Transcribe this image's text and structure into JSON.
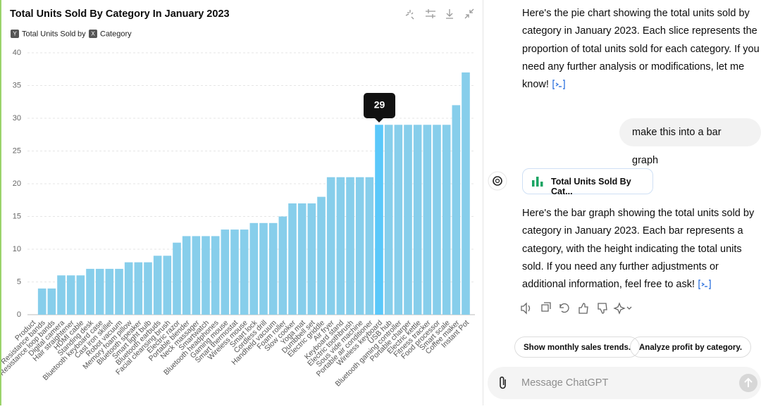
{
  "chart_data": {
    "type": "bar",
    "title": "Total Units Sold By Category In January 2023",
    "y_badge": "Y",
    "y_field": "Total Units Sold",
    "by": "by",
    "x_badge": "X",
    "x_field": "Category",
    "categories": [
      "Product",
      "Resistance bands",
      "Resistance loop bands",
      "Digital camera",
      "Hair straightener",
      "HDMI cable",
      "Standing desk",
      "Bluetooth keyboard case",
      "Cast iron skillet",
      "Robot vacuum",
      "Memory foam pillow",
      "Bluetooth speaker",
      "Smart light bulb",
      "Bluetooth earbuds",
      "Facial cleansing brush",
      "Electric razor",
      "Portable blender",
      "Neck massager",
      "Smartwatch",
      "Bluetooth headphones",
      "Gaming mouse",
      "Smart thermostat",
      "Wireless mouse",
      "Smart lock",
      "Cordless drill",
      "Handheld vacuum",
      "Foam roller",
      "Slow cooker",
      "Yoga mat",
      "Dumbbell set",
      "Electric griddle",
      "Air fryer",
      "Keyboard stand",
      "Electric toothbrush",
      "Sous vide machine",
      "Portable air conditioner",
      "Wireless keyboard",
      "USB hub",
      "Bluetooth gaming controller",
      "Portable charger",
      "Electric kettle",
      "Fitness tracker",
      "Food processor",
      "Smart scale",
      "Coffee maker",
      "Instant Pot"
    ],
    "values": [
      null,
      4,
      4,
      6,
      6,
      6,
      7,
      7,
      7,
      7,
      8,
      8,
      8,
      9,
      9,
      11,
      12,
      12,
      12,
      12,
      13,
      13,
      13,
      14,
      14,
      14,
      15,
      17,
      17,
      17,
      18,
      21,
      21,
      21,
      21,
      21,
      29,
      29,
      29,
      29,
      29,
      29,
      29,
      29,
      32,
      37
    ],
    "color": "#87ceeb",
    "active_color": "#5ac8fa",
    "ylim": [
      0,
      40
    ],
    "yticks": [
      0,
      5,
      10,
      15,
      20,
      25,
      30,
      35,
      40
    ],
    "grid": true
  },
  "chat": {
    "assistant_1": "Here's the pie chart showing the total units sold by category in January 2023. Each slice represents the proportion of total units sold for each category. If you need any further analysis or modifications, let me know!",
    "user_1": "make this into a bar graph",
    "card": "Total Units Sold By Cat...",
    "assistant_2": "Here's the bar graph showing the total units sold by category in January 2023. Each bar represents a category, with the height indicating the total units sold. If you need any further adjustments or additional information, feel free to ask!",
    "suggestions": [
      "Show monthly sales trends.",
      "Analyze profit by category."
    ],
    "input_placeholder": "Message ChatGPT"
  }
}
